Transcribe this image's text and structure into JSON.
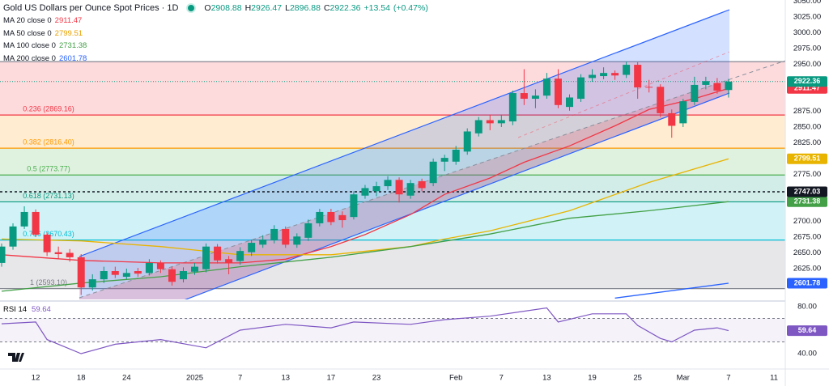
{
  "chart_data": {
    "type": "candlestick",
    "title": "Gold US Dollars per Ounce Spot Prices · 1D",
    "ohlc_keys": [
      "O",
      "H",
      "L",
      "C"
    ],
    "change": 13.54,
    "change_label": "+13.54",
    "change_pct": 0.47,
    "change_pct_label": "(+0.47%)",
    "up_color": "#089981",
    "down_color": "#f23645",
    "open": [
      2634,
      2660,
      2692,
      2715,
      2679,
      2651,
      2650,
      2643,
      2595,
      2608,
      2621,
      2612,
      2621,
      2618,
      2634,
      2624,
      2608,
      2620,
      2624,
      2660,
      2640,
      2637,
      2651,
      2663,
      2670,
      2688,
      2663,
      2674,
      2697,
      2715,
      2710,
      2707,
      2741,
      2748,
      2756,
      2766,
      2741,
      2764,
      2761,
      2795,
      2795,
      2811,
      2840,
      2861,
      2856,
      2859,
      2904,
      2895,
      2900,
      2927,
      2882,
      2895,
      2928,
      2931,
      2936,
      2933,
      2949,
      2914,
      2914,
      2872,
      2856,
      2890,
      2917,
      2920,
      2908.88
    ],
    "high": [
      2665,
      2697,
      2724,
      2719,
      2683,
      2660,
      2656,
      2648,
      2616,
      2628,
      2628,
      2625,
      2626,
      2640,
      2638,
      2628,
      2627,
      2634,
      2665,
      2664,
      2645,
      2659,
      2671,
      2678,
      2694,
      2692,
      2681,
      2703,
      2720,
      2720,
      2716,
      2748,
      2758,
      2763,
      2772,
      2770,
      2766,
      2768,
      2800,
      2806,
      2820,
      2848,
      2866,
      2870,
      2870,
      2908,
      2942,
      2910,
      2936,
      2942,
      2902,
      2934,
      2942,
      2945,
      2940,
      2954,
      2953,
      2925,
      2918,
      2878,
      2895,
      2930,
      2930,
      2928,
      2926.47
    ],
    "low": [
      2628,
      2655,
      2688,
      2675,
      2645,
      2641,
      2636,
      2583,
      2590,
      2602,
      2610,
      2608,
      2612,
      2614,
      2618,
      2598,
      2603,
      2615,
      2619,
      2633,
      2616,
      2631,
      2645,
      2658,
      2665,
      2658,
      2658,
      2669,
      2692,
      2694,
      2690,
      2703,
      2736,
      2740,
      2750,
      2730,
      2736,
      2748,
      2756,
      2780,
      2790,
      2806,
      2835,
      2845,
      2850,
      2853,
      2885,
      2880,
      2895,
      2880,
      2876,
      2890,
      2922,
      2926,
      2925,
      2928,
      2895,
      2905,
      2866,
      2833,
      2850,
      2885,
      2910,
      2903,
      2896.88
    ],
    "close": [
      2660,
      2692,
      2715,
      2679,
      2651,
      2648,
      2643,
      2595,
      2608,
      2621,
      2615,
      2618,
      2617,
      2634,
      2624,
      2604,
      2621,
      2628,
      2660,
      2638,
      2634,
      2653,
      2666,
      2671,
      2688,
      2663,
      2676,
      2697,
      2715,
      2699,
      2702,
      2743,
      2753,
      2756,
      2766,
      2743,
      2761,
      2753,
      2795,
      2801,
      2814,
      2843,
      2861,
      2856,
      2861,
      2904,
      2895,
      2900,
      2927,
      2885,
      2897,
      2929,
      2933,
      2936,
      2932,
      2949,
      2913,
      2913,
      2872,
      2852,
      2891,
      2917,
      2923,
      2908,
      2922.36
    ],
    "xticks": [
      {
        "value": 3,
        "label": "12"
      },
      {
        "value": 7,
        "label": "18"
      },
      {
        "value": 11,
        "label": "24"
      },
      {
        "value": 17,
        "label": "2025"
      },
      {
        "value": 21,
        "label": "7"
      },
      {
        "value": 25,
        "label": "13"
      },
      {
        "value": 29,
        "label": "17"
      },
      {
        "value": 33,
        "label": "23"
      },
      {
        "value": 40,
        "label": "Feb"
      },
      {
        "value": 44,
        "label": "7"
      },
      {
        "value": 48,
        "label": "13"
      },
      {
        "value": 52,
        "label": "19"
      },
      {
        "value": 56,
        "label": "25"
      },
      {
        "value": 60,
        "label": "Mar"
      },
      {
        "value": 64,
        "label": "7"
      },
      {
        "value": 68,
        "label": "11"
      }
    ],
    "ylim": [
      2576,
      3052
    ],
    "yticks": [
      {
        "value": 3050,
        "label": "3050.00"
      },
      {
        "value": 3025,
        "label": "3025.00"
      },
      {
        "value": 3000,
        "label": "3000.00"
      },
      {
        "value": 2975,
        "label": "2975.00"
      },
      {
        "value": 2950,
        "label": "2950.00"
      },
      {
        "value": 2875,
        "label": "2875.00"
      },
      {
        "value": 2850,
        "label": "2850.00"
      },
      {
        "value": 2825,
        "label": "2825.00"
      },
      {
        "value": 2775,
        "label": "2775.00"
      },
      {
        "value": 2700,
        "label": "2700.00"
      },
      {
        "value": 2675,
        "label": "2675.00"
      },
      {
        "value": 2650,
        "label": "2650.00"
      },
      {
        "value": 2625,
        "label": "2625.00"
      }
    ],
    "grid": false,
    "series": [
      {
        "name": "MA 20 close 0",
        "color": "#f23645",
        "x": [
          0,
          7,
          14,
          21,
          25,
          29,
          32,
          36,
          39,
          43,
          46,
          50,
          54,
          57,
          61,
          64
        ],
        "values": [
          2647,
          2638,
          2634,
          2634,
          2640,
          2660,
          2679,
          2711,
          2743,
          2769,
          2794,
          2820,
          2852,
          2878,
          2895,
          2911.47
        ]
      },
      {
        "name": "MA 50 close 0",
        "color": "#e8b400",
        "x": [
          0,
          7,
          14,
          21,
          29,
          36,
          39,
          43,
          50,
          57,
          64
        ],
        "values": [
          2672,
          2669,
          2660,
          2647,
          2647,
          2660,
          2672,
          2685,
          2717,
          2762,
          2799.51
        ]
      },
      {
        "name": "MA 100 close 0",
        "color": "#43a047",
        "x": [
          0,
          7,
          14,
          21,
          29,
          36,
          43,
          50,
          57,
          64
        ],
        "values": [
          2589,
          2602,
          2612,
          2628,
          2643,
          2660,
          2680,
          2705,
          2717,
          2731.38
        ]
      },
      {
        "name": "MA 200 close 0",
        "color": "#2962ff",
        "x": [
          54,
          64
        ],
        "values": [
          2578,
          2601.78
        ]
      }
    ],
    "fib_levels": [
      {
        "value": 2954,
        "color": "#787b86"
      },
      {
        "value": 2869.16,
        "label": "0.236 (2869.16)",
        "color": "#f23645"
      },
      {
        "value": 2816.4,
        "label": "0.382 (2816.40)",
        "color": "#ff9800"
      },
      {
        "value": 2773.77,
        "label": "0.5 (2773.77)",
        "color": "#4caf50"
      },
      {
        "value": 2731.13,
        "label": "0.618 (2731.13)",
        "color": "#089981"
      },
      {
        "value": 2670.43,
        "label": "0.786 (2670.43)",
        "color": "#00bcd4"
      },
      {
        "value": 2593.1,
        "label": "1 (2593.10)",
        "color": "#787b86"
      }
    ],
    "hline": 2747.03,
    "rsi": {
      "name": "RSI 14",
      "color": "#7e57c2",
      "x": [
        0,
        3,
        4,
        7,
        10,
        14,
        18,
        21,
        25,
        29,
        31,
        36,
        39,
        43,
        48,
        49,
        52,
        55,
        56,
        58,
        59,
        61,
        63,
        64
      ],
      "values": [
        65.5,
        67,
        52,
        40,
        48,
        52,
        45,
        60,
        65,
        62,
        67,
        65,
        69,
        72,
        79,
        67,
        74,
        74,
        64,
        53,
        50,
        60,
        62,
        59.64
      ],
      "ylim": [
        27.6,
        82.8
      ],
      "yticks": [
        {
          "value": 80,
          "label": "80.00"
        },
        {
          "value": 40,
          "label": "40.00"
        }
      ],
      "bands": [
        70,
        50
      ]
    }
  }
}
